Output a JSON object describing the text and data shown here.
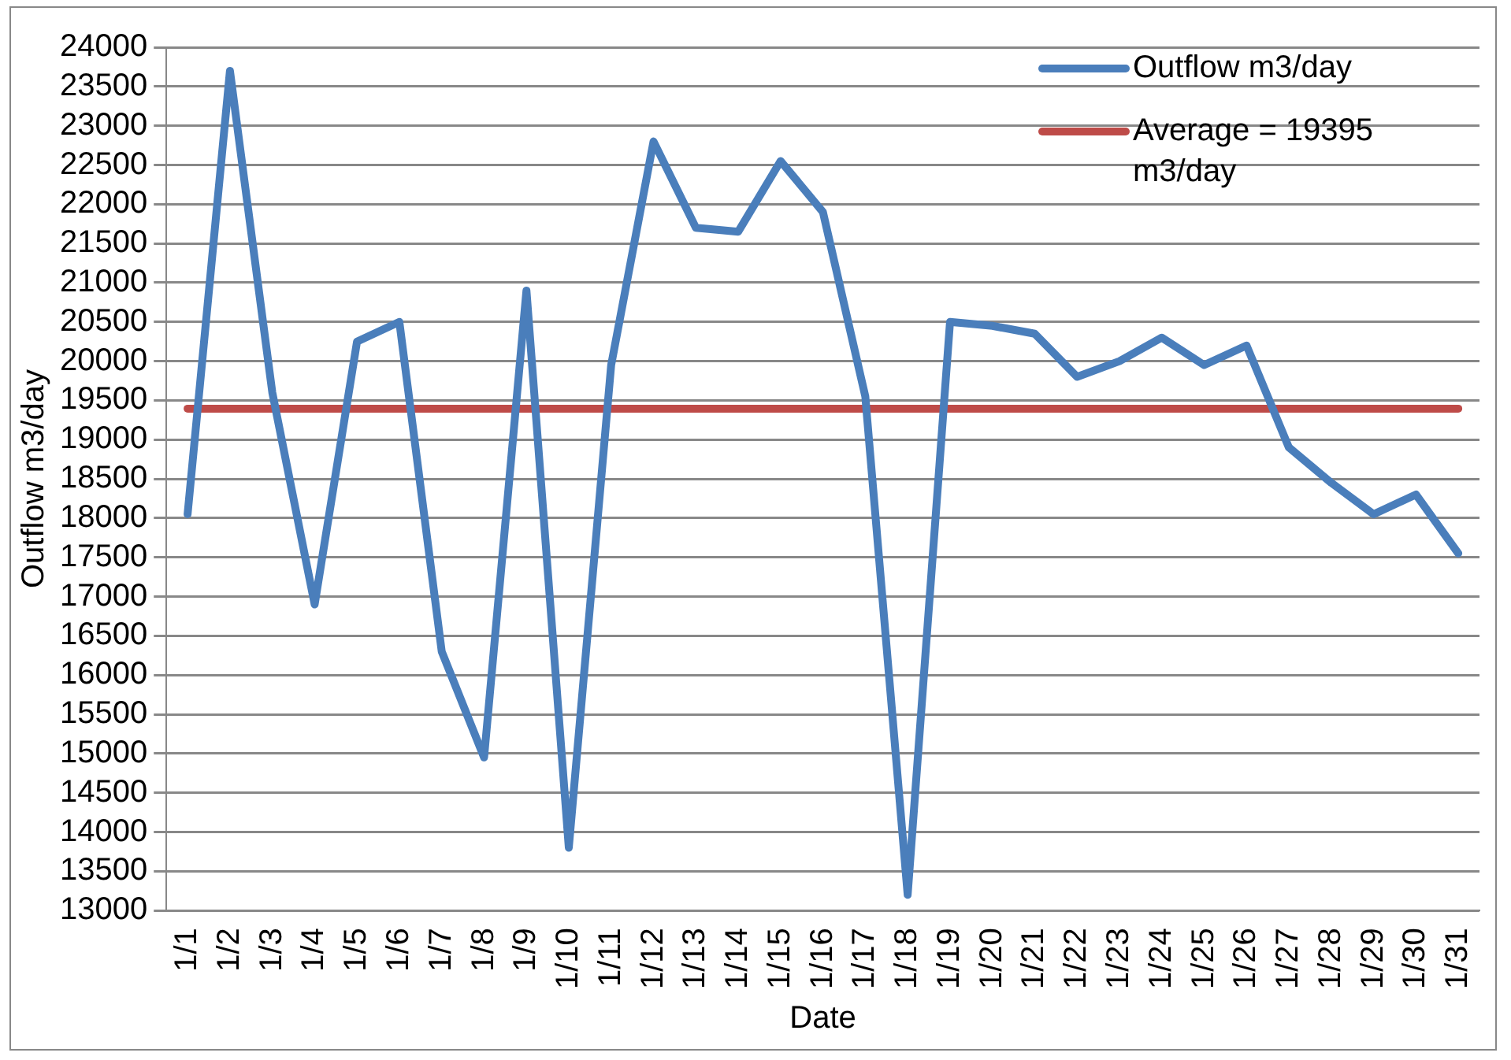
{
  "chart_data": {
    "type": "line",
    "xlabel": "Date",
    "ylabel": "Outflow m3/day",
    "categories": [
      "1/1",
      "1/2",
      "1/3",
      "1/4",
      "1/5",
      "1/6",
      "1/7",
      "1/8",
      "1/9",
      "1/10",
      "1/11",
      "1/12",
      "1/13",
      "1/14",
      "1/15",
      "1/16",
      "1/17",
      "1/18",
      "1/19",
      "1/20",
      "1/21",
      "1/22",
      "1/23",
      "1/24",
      "1/25",
      "1/26",
      "1/27",
      "1/28",
      "1/29",
      "1/30",
      "1/31"
    ],
    "series": [
      {
        "name": "Outflow m3/day",
        "color": "#4a7ebb",
        "values": [
          18050,
          23700,
          19600,
          16900,
          20250,
          20500,
          16300,
          14950,
          20900,
          13800,
          19950,
          22800,
          21700,
          21650,
          22550,
          21900,
          19550,
          13200,
          20500,
          20450,
          20350,
          19800,
          20000,
          20300,
          19950,
          20200,
          18900,
          18450,
          18050,
          18300,
          17550
        ]
      },
      {
        "name": "Average = 19395 m3/day",
        "color": "#be4b48",
        "values": [
          19395,
          19395,
          19395,
          19395,
          19395,
          19395,
          19395,
          19395,
          19395,
          19395,
          19395,
          19395,
          19395,
          19395,
          19395,
          19395,
          19395,
          19395,
          19395,
          19395,
          19395,
          19395,
          19395,
          19395,
          19395,
          19395,
          19395,
          19395,
          19395,
          19395,
          19395
        ]
      }
    ],
    "ylim": [
      13000,
      24000
    ],
    "yticks": [
      13000,
      13500,
      14000,
      14500,
      15000,
      15500,
      16000,
      16500,
      17000,
      17500,
      18000,
      18500,
      19000,
      19500,
      20000,
      20500,
      21000,
      21500,
      22000,
      22500,
      23000,
      23500,
      24000
    ],
    "grid": "y",
    "legend": "top right",
    "marker": "none",
    "line_style": "solid"
  }
}
